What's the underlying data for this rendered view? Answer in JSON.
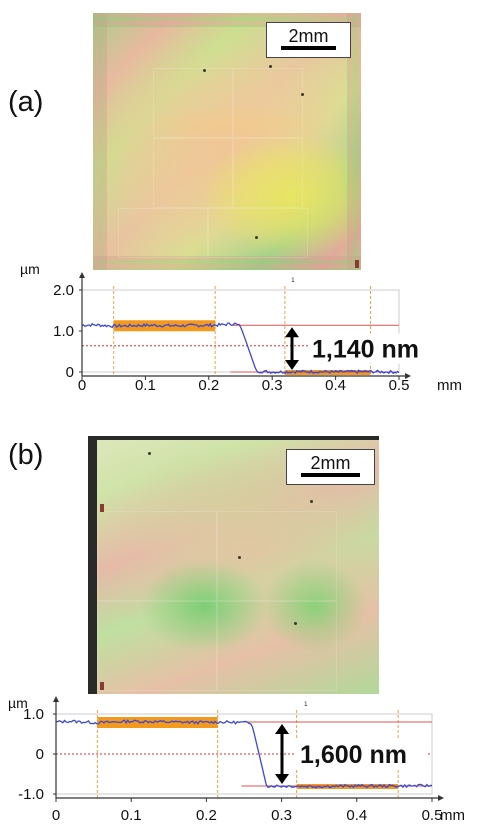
{
  "panels": [
    {
      "id": "a",
      "label": "(a)",
      "scale_bar": "2mm",
      "frame_tag": "",
      "profile": {
        "y_unit": "µm",
        "x_unit": "mm",
        "marker": "1",
        "y_ticks": [
          {
            "value": 2.0,
            "label": "2.0"
          },
          {
            "value": 1.0,
            "label": "1.0"
          },
          {
            "value": 0.0,
            "label": "0"
          }
        ],
        "x_ticks": [
          {
            "value": 0.0,
            "label": "0"
          },
          {
            "value": 0.1,
            "label": "0.1"
          },
          {
            "value": 0.2,
            "label": "0.2"
          },
          {
            "value": 0.3,
            "label": "0.3"
          },
          {
            "value": 0.4,
            "label": "0.4"
          },
          {
            "value": 0.5,
            "label": "0.5"
          }
        ],
        "x_range": [
          0,
          0.5
        ],
        "y_range": [
          0,
          2.0
        ],
        "step_height": "1,140 nm",
        "upper_level": 1.14,
        "lower_level": 0.0,
        "mid_reference": 0.64,
        "step_start": 0.25,
        "step_end": 0.275,
        "upper_band": [
          0.05,
          0.21
        ],
        "lower_band": [
          0.32,
          0.455
        ],
        "guide_lines": [
          0.05,
          0.21,
          0.32,
          0.455
        ]
      }
    },
    {
      "id": "b",
      "label": "(b)",
      "scale_bar": "2mm",
      "frame_tag": "",
      "profile": {
        "y_unit": "µm",
        "x_unit": "mm",
        "marker": "1",
        "y_ticks": [
          {
            "value": 1.0,
            "label": "1.0"
          },
          {
            "value": 0.0,
            "label": "0"
          },
          {
            "value": -1.0,
            "label": "-1.0"
          }
        ],
        "x_ticks": [
          {
            "value": 0.0,
            "label": "0"
          },
          {
            "value": 0.1,
            "label": "0.1"
          },
          {
            "value": 0.2,
            "label": "0.2"
          },
          {
            "value": 0.3,
            "label": "0.3"
          },
          {
            "value": 0.4,
            "label": "0.4"
          },
          {
            "value": 0.5,
            "label": "0.5"
          }
        ],
        "x_range": [
          0,
          0.5
        ],
        "y_range": [
          -1.0,
          1.0
        ],
        "step_height": "1,600 nm",
        "upper_level": 0.8,
        "lower_level": -0.8,
        "mid_reference": 0.0,
        "step_start": 0.26,
        "step_end": 0.28,
        "upper_band": [
          0.055,
          0.215
        ],
        "lower_band": [
          0.32,
          0.455
        ],
        "guide_lines": [
          0.055,
          0.215,
          0.32,
          0.455
        ]
      }
    }
  ],
  "colors": {
    "profile_line": "#3a48d8",
    "band": "#f39a1c",
    "reference_line": "#e05050",
    "mid_reference": "#e03030",
    "guide_line": "#f0a040",
    "axis": "#333333",
    "grid": "#cccccc"
  },
  "chart_data": [
    {
      "type": "line",
      "title": "",
      "xlabel": "mm",
      "ylabel": "µm",
      "xlim": [
        0,
        0.5
      ],
      "ylim": [
        0,
        2.0
      ],
      "annotation": "1,140 nm",
      "series": [
        {
          "x": [
            0.0,
            0.02,
            0.05,
            0.1,
            0.15,
            0.2,
            0.22,
            0.24,
            0.25,
            0.262,
            0.275,
            0.3,
            0.35,
            0.4,
            0.45,
            0.5
          ],
          "y": [
            1.14,
            1.15,
            1.12,
            1.14,
            1.13,
            1.14,
            1.15,
            1.18,
            1.12,
            0.6,
            0.02,
            0.0,
            0.01,
            0.0,
            0.01,
            0.0
          ]
        }
      ]
    },
    {
      "type": "line",
      "title": "",
      "xlabel": "mm",
      "ylabel": "µm",
      "xlim": [
        0,
        0.5
      ],
      "ylim": [
        -1.0,
        1.0
      ],
      "annotation": "1,600 nm",
      "series": [
        {
          "x": [
            0.0,
            0.02,
            0.055,
            0.1,
            0.15,
            0.2,
            0.215,
            0.24,
            0.26,
            0.27,
            0.28,
            0.3,
            0.35,
            0.4,
            0.455,
            0.5
          ],
          "y": [
            0.8,
            0.82,
            0.78,
            0.82,
            0.8,
            0.79,
            0.8,
            0.79,
            0.78,
            0.0,
            -0.8,
            -0.8,
            -0.81,
            -0.8,
            -0.8,
            -0.79
          ]
        }
      ]
    }
  ]
}
